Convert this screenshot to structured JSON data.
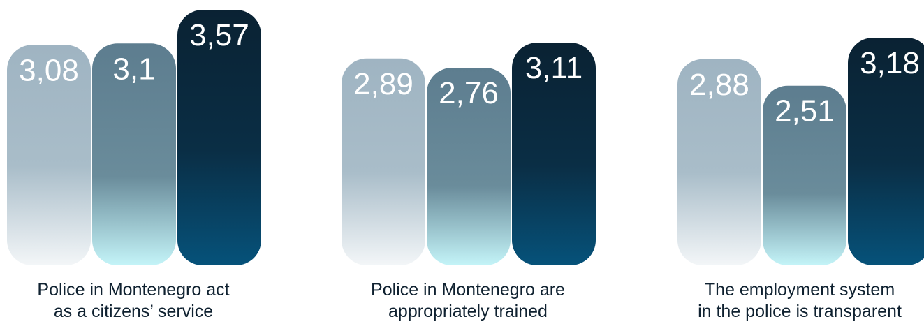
{
  "chart_data": {
    "type": "bar",
    "categories": [
      "Police in Montenegro act as a citizens’ service",
      "Police in Montenegro are appropriately trained",
      "The employment system in the police is transparent"
    ],
    "category_lines": [
      [
        "Police in Montenegro act",
        "as a citizens’ service"
      ],
      [
        "Police in Montenegro are",
        "appropriately trained"
      ],
      [
        "The employment system",
        "in the police is transparent"
      ]
    ],
    "series": [
      {
        "values": [
          3.08,
          2.89,
          2.88
        ],
        "labels": [
          "3,08",
          "2,89",
          "2,88"
        ],
        "color": "#9fb4c2"
      },
      {
        "values": [
          3.1,
          2.76,
          2.51
        ],
        "labels": [
          "3,1",
          "2,76",
          "2,51"
        ],
        "color": "#5d7d8f"
      },
      {
        "values": [
          3.57,
          3.11,
          3.18
        ],
        "labels": [
          "3,57",
          "3,11",
          "3,18"
        ],
        "color": "#0a2a3f"
      }
    ],
    "colors": {
      "light_top": "#9fb4c2",
      "light_bottom": "#f3f6f8",
      "mid_top": "#5d7d8f",
      "mid_bottom": "#c4f4f8",
      "dark_top": "#0a2233",
      "dark_bottom": "#06527a"
    },
    "ylim": [
      0,
      4
    ],
    "grid": false,
    "legend": "none"
  }
}
